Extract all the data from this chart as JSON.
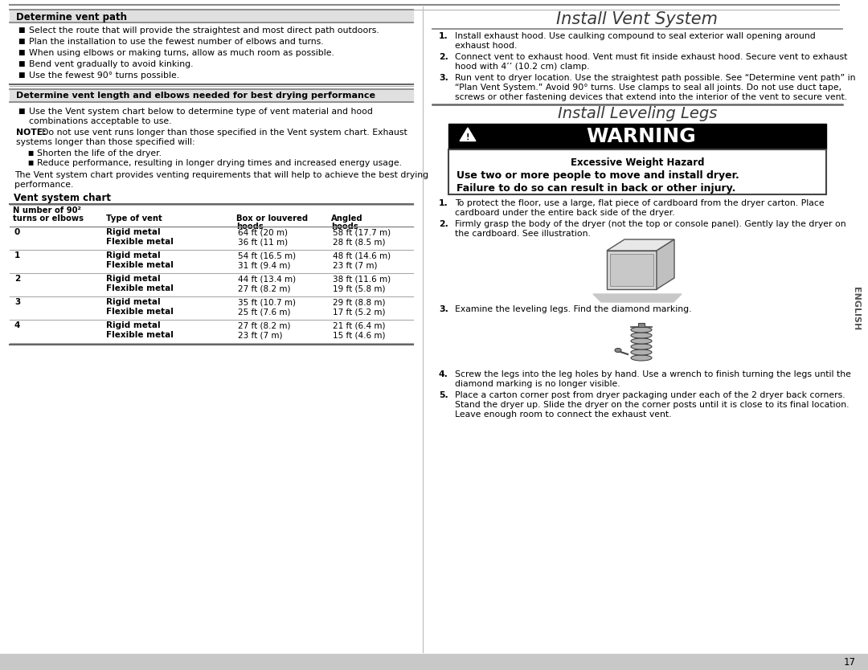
{
  "bg_color": "#ffffff",
  "left_col": {
    "section1_title": "Determine vent path",
    "section1_bullets": [
      "Select the route that will provide the straightest and most direct path outdoors.",
      "Plan the installation to use the fewest number of elbows and turns.",
      "When using elbows or making turns, allow as much room as possible.",
      "Bend vent gradually to avoid kinking.",
      "Use the fewest 90° turns possible."
    ],
    "section2_title": "Determine vent length and elbows needed for best drying performance",
    "section2_bullet_line1": "Use the Vent system chart below to determine type of vent material and hood",
    "section2_bullet_line2": "combinations acceptable to use.",
    "note_line1": "Do not use vent runs longer than those specified in the Vent system chart. Exhaust",
    "note_line2": "systems longer than those specified will:",
    "note_sub_bullets": [
      "Shorten the life of the dryer.",
      "Reduce performance, resulting in longer drying times and increased energy usage."
    ],
    "para_line1": "The Vent system chart provides venting requirements that will help to achieve the best drying",
    "para_line2": "performance.",
    "chart_title": "Vent system chart",
    "col_header_1a": "N umber of 90²",
    "col_header_1b": "turns or elbows",
    "col_header_2": "Type of vent",
    "col_header_3a": "Box or louvered",
    "col_header_3b": "hoods",
    "col_header_4a": "Angled",
    "col_header_4b": "hoods",
    "table_rows": [
      [
        "0",
        "Rigid metal",
        "Flexible metal",
        "64 ft (20 m)",
        "36 ft (11 m)",
        "58 ft (17.7 m)",
        "28 ft (8.5 m)"
      ],
      [
        "1",
        "Rigid metal",
        "Flexible metal",
        "54 ft (16.5 m)",
        "31 ft (9.4 m)",
        "48 ft (14.6 m)",
        "23 ft (7 m)"
      ],
      [
        "2",
        "Rigid metal",
        "Flexible metal",
        "44 ft (13.4 m)",
        "27 ft (8.2 m)",
        "38 ft (11.6 m)",
        "19 ft (5.8 m)"
      ],
      [
        "3",
        "Rigid metal",
        "Flexible metal",
        "35 ft (10.7 m)",
        "25 ft (7.6 m)",
        "29 ft (8.8 m)",
        "17 ft (5.2 m)"
      ],
      [
        "4",
        "Rigid metal",
        "Flexible metal",
        "27 ft (8.2 m)",
        "23 ft (7 m)",
        "21 ft (6.4 m)",
        "15 ft (4.6 m)"
      ]
    ]
  },
  "right_col": {
    "title1": "Install Vent System",
    "step1_num": "1.",
    "step1_line1": "Install exhaust hood. Use caulking compound to seal exterior wall opening around",
    "step1_line2": "exhaust hood.",
    "step2_num": "2.",
    "step2_line1": "Connect vent to exhaust hood. Vent must fit inside exhaust hood. Secure vent to exhaust",
    "step2_line2": "hood with 4’’ (10.2 cm) clamp.",
    "step3_num": "3.",
    "step3_line1": "Run vent to dryer location. Use the straightest path possible. See “Determine vent path” in",
    "step3_line2": "“Plan Vent System.” Avoid 90° turns. Use clamps to seal all joints. Do not use duct tape,",
    "step3_line3": "screws or other fastening devices that extend into the interior of the vent to secure vent.",
    "title2": "Install Leveling Legs",
    "warning_title": "WARNING",
    "warning_hazard": "Excessive Weight Hazard",
    "warning_line1": "Use two or more people to move and install dryer.",
    "warning_line2": "Failure to do so can result in back or other injury.",
    "s1_num": "1.",
    "s1_line1": "To protect the floor, use a large, flat piece of cardboard from the dryer carton. Place",
    "s1_line2": "cardboard under the entire back side of the dryer.",
    "s2_num": "2.",
    "s2_line1": "Firmly grasp the body of the dryer (not the top or console panel). Gently lay the dryer on",
    "s2_line2": "the cardboard. See illustration.",
    "s3_num": "3.",
    "s3_line1": "Examine the leveling legs. Find the diamond marking.",
    "s4_num": "4.",
    "s4_line1": "Screw the legs into the leg holes by hand. Use a wrench to finish turning the legs until the",
    "s4_line2": "diamond marking is no longer visible.",
    "s5_num": "5.",
    "s5_line1": "Place a carton corner post from dryer packaging under each of the 2 dryer back corners.",
    "s5_line2": "Stand the dryer up. Slide the dryer on the corner posts until it is close to its final location.",
    "s5_line3": "Leave enough room to connect the exhaust vent.",
    "english_label": "ENGLISH",
    "page_number": "17"
  }
}
